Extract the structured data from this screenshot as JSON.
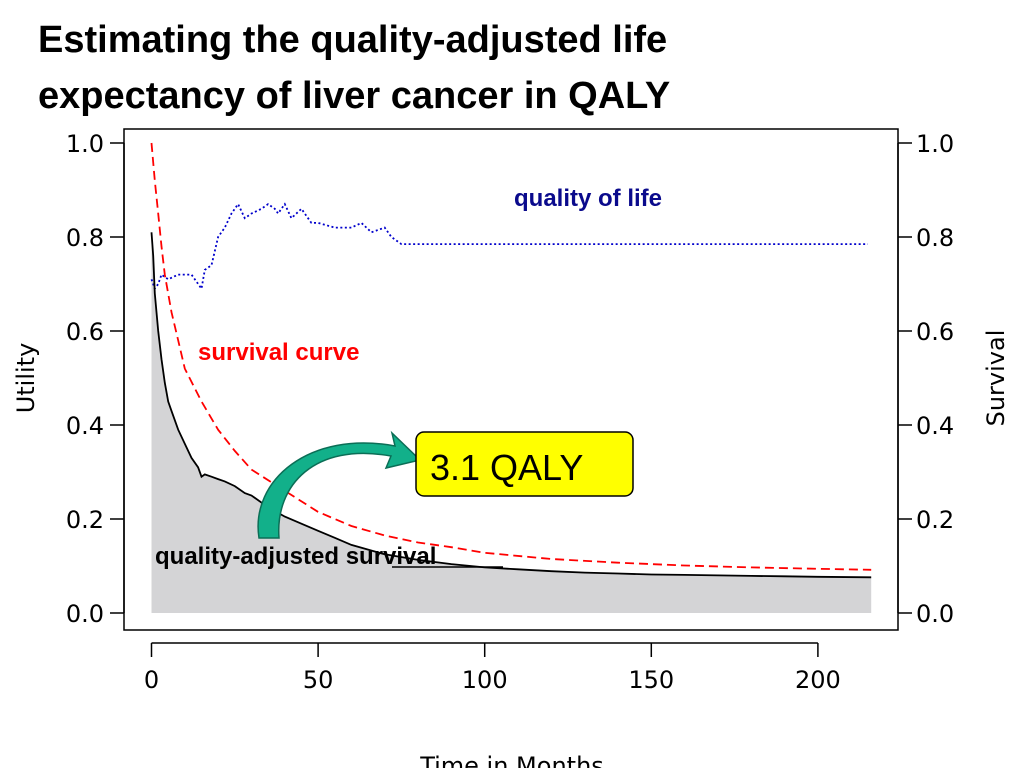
{
  "slide": {
    "title_line1": "Estimating the quality-adjusted life",
    "title_line2": "expectancy of liver cancer in QALY"
  },
  "chart_data": {
    "type": "line",
    "xlabel": "Time in Months",
    "ylabel_left": "Utility",
    "ylabel_right": "Survival",
    "xlim": [
      0,
      220
    ],
    "ylim": [
      0,
      1.0
    ],
    "x_ticks": [
      "0",
      "50",
      "100",
      "150",
      "200"
    ],
    "y_ticks": [
      "0.0",
      "0.2",
      "0.4",
      "0.6",
      "0.8",
      "1.0"
    ],
    "grid": false,
    "colors": {
      "survival": "#ff0000",
      "quality_of_life": "#0000cc",
      "quality_adjusted": "#000000",
      "area_fill": "#d4d4d6",
      "callout_fill": "#ffff00",
      "arrow": "#12b08a"
    },
    "series": [
      {
        "name": "survival curve",
        "style": "dashed",
        "x": [
          0,
          1,
          2,
          3,
          4,
          6,
          8,
          10,
          15,
          20,
          25,
          30,
          40,
          50,
          60,
          70,
          80,
          90,
          100,
          120,
          140,
          160,
          180,
          200,
          216
        ],
        "y": [
          1.0,
          0.92,
          0.85,
          0.78,
          0.72,
          0.64,
          0.58,
          0.52,
          0.45,
          0.39,
          0.345,
          0.305,
          0.26,
          0.215,
          0.185,
          0.165,
          0.15,
          0.14,
          0.128,
          0.115,
          0.107,
          0.101,
          0.097,
          0.094,
          0.092
        ]
      },
      {
        "name": "quality of life",
        "style": "dotted",
        "x": [
          0,
          1,
          2,
          3,
          5,
          8,
          12,
          15,
          16,
          18,
          20,
          22,
          24,
          26,
          28,
          30,
          33,
          35,
          37,
          38,
          40,
          42,
          45,
          48,
          50,
          55,
          60,
          63,
          66,
          70,
          72,
          75,
          80,
          100,
          150,
          200,
          215
        ],
        "y": [
          0.71,
          0.69,
          0.7,
          0.72,
          0.71,
          0.72,
          0.72,
          0.69,
          0.73,
          0.74,
          0.8,
          0.82,
          0.85,
          0.87,
          0.84,
          0.85,
          0.86,
          0.87,
          0.86,
          0.85,
          0.87,
          0.84,
          0.86,
          0.83,
          0.83,
          0.82,
          0.82,
          0.83,
          0.81,
          0.82,
          0.8,
          0.785,
          0.785,
          0.785,
          0.785,
          0.785,
          0.785
        ]
      },
      {
        "name": "quality-adjusted survival",
        "style": "solid",
        "x": [
          0,
          0.5,
          1,
          2,
          3,
          4,
          5,
          6,
          8,
          10,
          12,
          14,
          15,
          16,
          18,
          20,
          22,
          25,
          28,
          30,
          35,
          40,
          45,
          50,
          55,
          60,
          70,
          80,
          90,
          100,
          110,
          120,
          130,
          140,
          150,
          160,
          170,
          180,
          190,
          200,
          216
        ],
        "y": [
          0.81,
          0.76,
          0.68,
          0.6,
          0.54,
          0.49,
          0.45,
          0.43,
          0.39,
          0.36,
          0.33,
          0.31,
          0.29,
          0.295,
          0.29,
          0.285,
          0.28,
          0.27,
          0.255,
          0.25,
          0.225,
          0.205,
          0.19,
          0.175,
          0.16,
          0.145,
          0.125,
          0.113,
          0.104,
          0.097,
          0.093,
          0.089,
          0.086,
          0.084,
          0.082,
          0.081,
          0.08,
          0.079,
          0.078,
          0.077,
          0.076
        ]
      }
    ],
    "annotations": {
      "quality_of_life": "quality of life",
      "survival_curve": "survival curve",
      "quality_adjusted": "quality-adjusted survival",
      "callout": "3.1 QALY"
    }
  }
}
